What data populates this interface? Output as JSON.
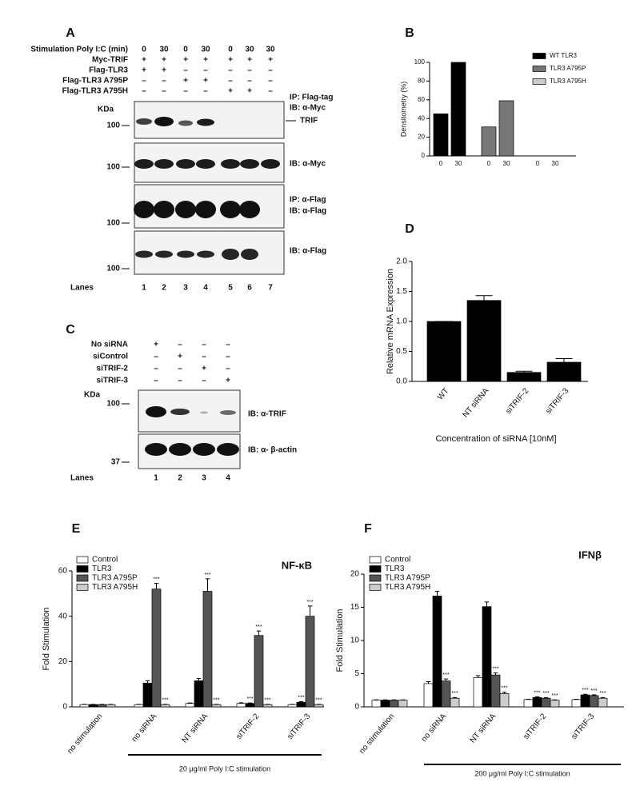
{
  "panel_a": {
    "letter": "A",
    "conditions": [
      {
        "label": "Stimulation Poly I:C (min)",
        "values": [
          "0",
          "30",
          "0",
          "30",
          "0",
          "30",
          "30"
        ]
      },
      {
        "label": "Myc-TRIF",
        "values": [
          "+",
          "+",
          "+",
          "+",
          "+",
          "+",
          "+"
        ]
      },
      {
        "label": "Flag-TLR3",
        "values": [
          "+",
          "+",
          "–",
          "–",
          "–",
          "–",
          "–"
        ]
      },
      {
        "label": "Flag-TLR3 A795P",
        "values": [
          "–",
          "–",
          "+",
          "+",
          "–",
          "–",
          "–"
        ]
      },
      {
        "label": "Flag-TLR3 A795H",
        "values": [
          "–",
          "–",
          "–",
          "–",
          "+",
          "+",
          "–"
        ]
      }
    ],
    "kda": "KDa",
    "markers": [
      "100",
      "100",
      "100",
      "100"
    ],
    "blot_labels": [
      "IP: Flag-tag",
      "IB: α-Myc",
      "TRIF",
      "IB: α-Myc",
      "IP: α-Flag",
      "IB: α-Flag",
      "IB: α-Flag"
    ],
    "lanes_label": "Lanes",
    "lanes": [
      "1",
      "2",
      "3",
      "4",
      "5",
      "6",
      "7"
    ]
  },
  "panel_c": {
    "letter": "C",
    "conditions": [
      {
        "label": "No siRNA",
        "values": [
          "+",
          "–",
          "–",
          "–"
        ]
      },
      {
        "label": "siControl",
        "values": [
          "–",
          "+",
          "–",
          "–"
        ]
      },
      {
        "label": "siTRIF-2",
        "values": [
          "–",
          "–",
          "+",
          "–"
        ]
      },
      {
        "label": "siTRIF-3",
        "values": [
          "–",
          "–",
          "–",
          "+"
        ]
      }
    ],
    "kda": "KDa",
    "markers": [
      "100",
      "37"
    ],
    "blot_labels": [
      "IB: α-TRIF",
      "IB: α- β-actin"
    ],
    "lanes_label": "Lanes",
    "lanes": [
      "1",
      "2",
      "3",
      "4"
    ]
  },
  "chart_data": [
    {
      "type": "bar",
      "panel": "B",
      "ylabel": "Densitometry (%)",
      "categories": [
        "0",
        "30",
        "0",
        "30",
        "0",
        "30"
      ],
      "series": [
        {
          "name": "WT TLR3",
          "color": "#000000",
          "values": [
            45,
            100,
            null,
            null,
            null,
            null
          ]
        },
        {
          "name": "TLR3 A795P",
          "color": "#777777",
          "values": [
            null,
            null,
            31,
            59,
            null,
            null
          ]
        },
        {
          "name": "TLR3 A795H",
          "color": "#cccccc",
          "values": [
            null,
            null,
            null,
            null,
            0,
            0
          ]
        }
      ],
      "ylim": [
        0,
        100
      ],
      "yticks": [
        0,
        20,
        40,
        60,
        80,
        100
      ]
    },
    {
      "type": "bar",
      "panel": "D",
      "ylabel": "Relative mRNA Expression",
      "xlabel": "Concentration of siRNA [10nM]",
      "categories": [
        "WT",
        "NT siRNA",
        "siTRIF-2",
        "siTRIF-3"
      ],
      "values": [
        1.0,
        1.35,
        0.15,
        0.32
      ],
      "errors": [
        0,
        0.08,
        0.02,
        0.06
      ],
      "color": "#000000",
      "ylim": [
        0,
        2.0
      ],
      "yticks": [
        {
          "value": 0,
          "label": "0.0"
        },
        0.5,
        {
          "value": 1,
          "label": "1.0"
        },
        1.5,
        {
          "value": 2,
          "label": "2.0"
        }
      ]
    },
    {
      "type": "bar",
      "panel": "E",
      "title": "NF-κB",
      "ylabel": "Fold Stimulation",
      "note": "20 μg/ml Poly I:C stimulation",
      "categories": [
        "no stimulation",
        "no siRNA",
        "NT siRNA",
        "siTRIF-2",
        "siTRIF-3"
      ],
      "series": [
        {
          "name": "Control",
          "color": "#ffffff",
          "values": [
            1,
            1,
            1.5,
            1.5,
            1
          ],
          "errors": [
            0.1,
            0.1,
            0.2,
            0.3,
            0.1
          ]
        },
        {
          "name": "TLR3",
          "color": "#000000",
          "values": [
            1,
            10.5,
            11.5,
            1.5,
            2
          ],
          "errors": [
            0.1,
            1,
            1,
            0.2,
            0.3
          ],
          "labels": [
            null,
            null,
            null,
            "***",
            "***"
          ]
        },
        {
          "name": "TLR3 A795P",
          "color": "#555555",
          "values": [
            1,
            52,
            51,
            31.5,
            40
          ],
          "errors": [
            0.1,
            2.5,
            5.5,
            2,
            4.5
          ],
          "labels": [
            null,
            "***",
            "***",
            "***",
            "***"
          ]
        },
        {
          "name": "TLR3 A795H",
          "color": "#cccccc",
          "values": [
            1,
            1,
            1,
            1,
            1
          ],
          "errors": [
            0.1,
            0.1,
            0.1,
            0.1,
            0.1
          ],
          "labels": [
            null,
            "***",
            "***",
            "***",
            "***"
          ]
        }
      ],
      "ylim": [
        0,
        60
      ],
      "yticks": [
        0,
        20,
        40,
        60
      ]
    },
    {
      "type": "bar",
      "panel": "F",
      "title": "IFNβ",
      "ylabel": "Fold Stimulation",
      "note": "200 μg/ml Poly I:C stimulation",
      "categories": [
        "no stimulation",
        "no siRNA",
        "NT siRNA",
        "siTRIF-2",
        "siTRIF-3"
      ],
      "series": [
        {
          "name": "Control",
          "color": "#ffffff",
          "values": [
            1,
            3.5,
            4.4,
            1.1,
            1.1
          ],
          "errors": [
            0.05,
            0.3,
            0.3,
            0.05,
            0.05
          ]
        },
        {
          "name": "TLR3",
          "color": "#000000",
          "values": [
            1,
            16.7,
            15.1,
            1.4,
            1.8
          ],
          "errors": [
            0.05,
            0.7,
            0.7,
            0.1,
            0.1
          ],
          "labels": [
            null,
            null,
            null,
            "***",
            "***"
          ]
        },
        {
          "name": "TLR3 A795P",
          "color": "#555555",
          "values": [
            1,
            3.9,
            4.8,
            1.3,
            1.7
          ],
          "errors": [
            0.05,
            0.3,
            0.3,
            0.1,
            0.1
          ],
          "labels": [
            null,
            "***",
            "***",
            "***",
            "***"
          ]
        },
        {
          "name": "TLR3 A795H",
          "color": "#cccccc",
          "values": [
            1,
            1.3,
            2.0,
            1.0,
            1.3
          ],
          "errors": [
            0.05,
            0.1,
            0.2,
            0.05,
            0.1
          ],
          "labels": [
            null,
            "***",
            "***",
            "***",
            "***"
          ]
        }
      ],
      "ylim": [
        0,
        20
      ],
      "yticks": [
        0,
        5,
        10,
        15,
        20
      ]
    }
  ]
}
